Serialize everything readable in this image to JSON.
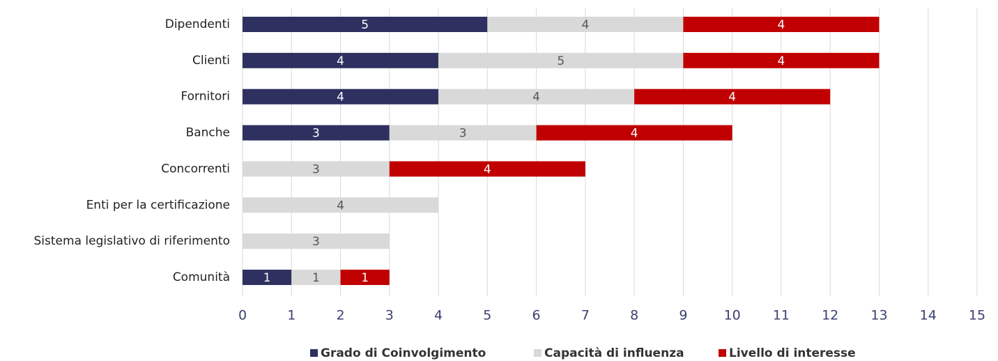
{
  "chart_data": {
    "type": "bar",
    "orientation": "horizontal",
    "stacked": true,
    "categories": [
      "Dipendenti",
      "Clienti",
      "Fornitori",
      "Banche",
      "Concorrenti",
      "Enti per la certificazione",
      "Sistema legislativo di riferimento",
      "Comunità"
    ],
    "series": [
      {
        "name": "Grado di Coinvolgimento",
        "color": "#2e3160",
        "values": [
          5,
          4,
          4,
          3,
          null,
          null,
          null,
          1
        ]
      },
      {
        "name": "Capacità di influenza",
        "color": "#d9d9d9",
        "values": [
          4,
          5,
          4,
          3,
          3,
          4,
          3,
          1
        ]
      },
      {
        "name": "Livello di interesse",
        "color": "#c00000",
        "values": [
          4,
          4,
          4,
          4,
          4,
          null,
          null,
          1
        ]
      }
    ],
    "xlim": [
      0,
      15
    ],
    "xticks": [
      0,
      1,
      2,
      3,
      4,
      5,
      6,
      7,
      8,
      9,
      10,
      11,
      12,
      13,
      14,
      15
    ],
    "grid": true,
    "legend": "bottom"
  }
}
